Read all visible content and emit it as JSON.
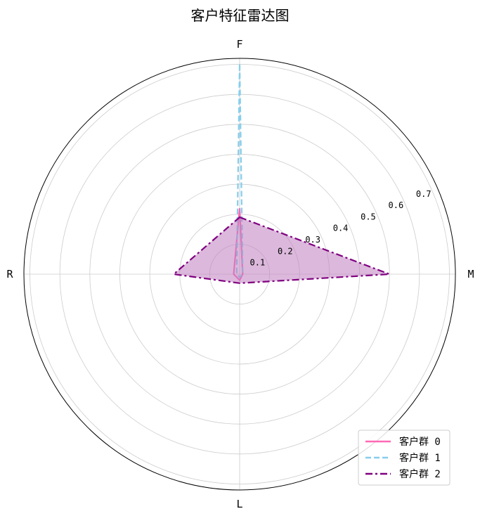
{
  "chart_data": {
    "type": "radar",
    "title": "客户特征雷达图",
    "axes": [
      "F",
      "M",
      "L",
      "R"
    ],
    "r_ticks": [
      "0.1",
      "0.2",
      "0.3",
      "0.4",
      "0.5",
      "0.6",
      "0.7"
    ],
    "r_tick_values": [
      0.1,
      0.2,
      0.3,
      0.4,
      0.5,
      0.6,
      0.7
    ],
    "r_max": 0.72,
    "grid": true,
    "legend_position": "lower-right",
    "series": [
      {
        "name": "客户群 0",
        "values": [
          0.22,
          0.01,
          0.02,
          0.02
        ],
        "color": "#ff69b4",
        "line_style": "solid",
        "fill": false
      },
      {
        "name": "客户群 1",
        "values": [
          0.7,
          0.01,
          0.01,
          0.01
        ],
        "color": "#87ceeb",
        "line_style": "dashed",
        "fill": false
      },
      {
        "name": "客户群 2",
        "values": [
          0.19,
          0.5,
          0.03,
          0.22
        ],
        "color": "#800080",
        "line_style": "dashdot",
        "fill": true,
        "fill_color": "#c080c0"
      }
    ]
  }
}
